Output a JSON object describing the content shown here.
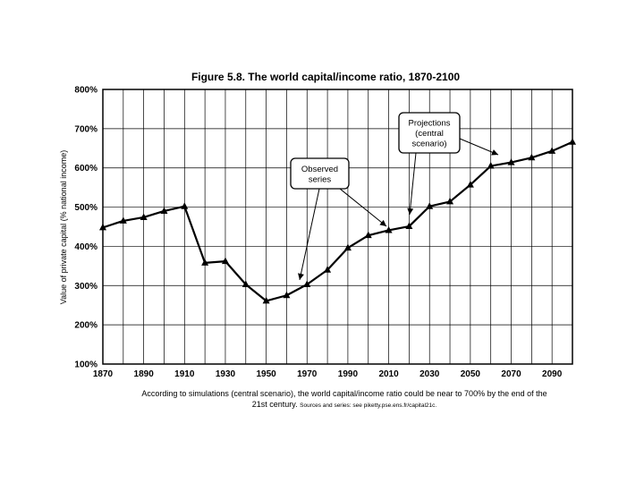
{
  "chart_data": {
    "type": "line",
    "title": "Figure 5.8. The world capital/income ratio, 1870-2100",
    "ylabel": "Value of private capital (% national income)",
    "xlabel": "",
    "xlim": [
      1870,
      2100
    ],
    "ylim": [
      100,
      800
    ],
    "x_ticks": [
      1870,
      1890,
      1910,
      1930,
      1950,
      1970,
      1990,
      2010,
      2030,
      2050,
      2070,
      2090
    ],
    "y_ticks": [
      {
        "value": 100,
        "label": "100%"
      },
      {
        "value": 200,
        "label": "200%"
      },
      {
        "value": 300,
        "label": "300%"
      },
      {
        "value": 400,
        "label": "400%"
      },
      {
        "value": 500,
        "label": "500%"
      },
      {
        "value": 600,
        "label": "600%"
      },
      {
        "value": 700,
        "label": "700%"
      },
      {
        "value": 800,
        "label": "800%"
      }
    ],
    "grid": true,
    "series": [
      {
        "marker": "triangle",
        "color": "#000000",
        "x": [
          1870,
          1880,
          1890,
          1900,
          1910,
          1920,
          1930,
          1940,
          1950,
          1960,
          1970,
          1980,
          1990,
          2000,
          2010,
          2020,
          2030,
          2040,
          2050,
          2060,
          2070,
          2080,
          2090,
          2100
        ],
        "y": [
          448,
          465,
          474,
          490,
          502,
          358,
          362,
          303,
          261,
          275,
          303,
          340,
          396,
          428,
          441,
          451,
          502,
          514,
          557,
          605,
          614,
          626,
          643,
          666
        ]
      }
    ],
    "annotations": [
      {
        "text_lines": [
          "Observed",
          "series"
        ],
        "box": "rounded"
      },
      {
        "text_lines": [
          "Projections",
          "(central",
          "scenario)"
        ],
        "box": "rounded"
      }
    ]
  },
  "caption": {
    "line1": "According to simulations (central scenario), the world capital/income ratio could be near to 700% by the end of the",
    "line2": "21st century.",
    "source": "Sources and series: see piketty.pse.ens.fr/capital21c."
  }
}
